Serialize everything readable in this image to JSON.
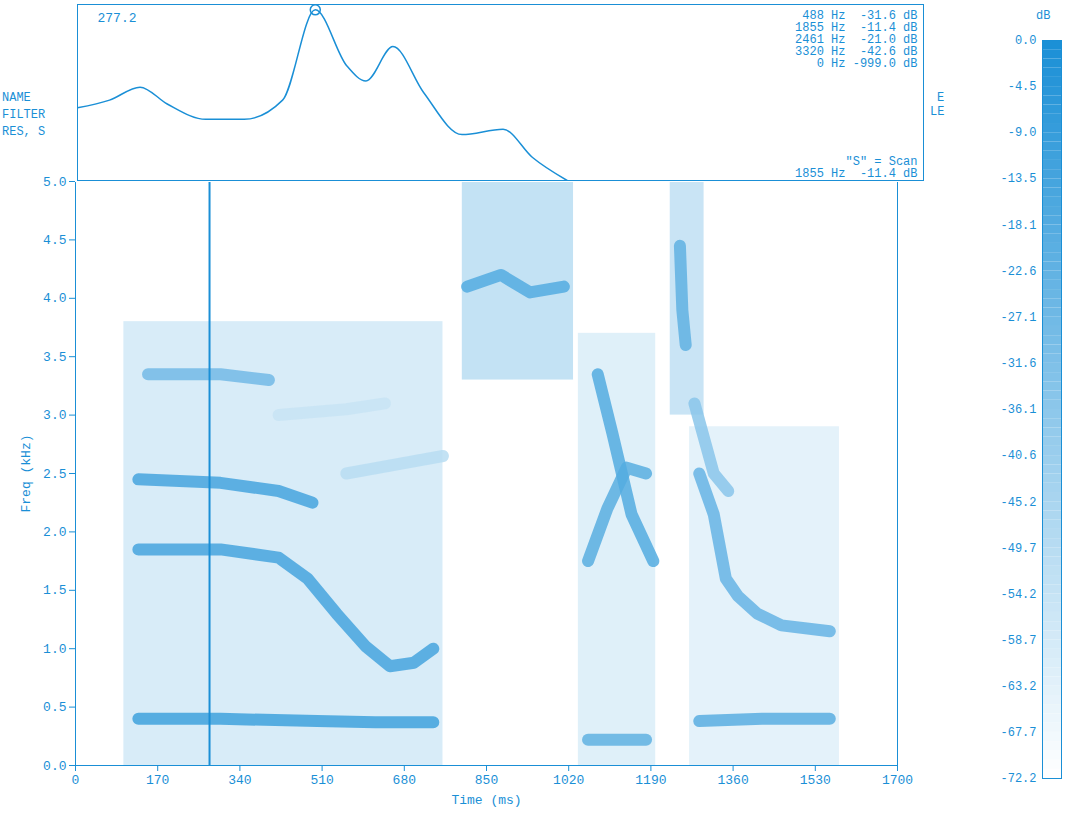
{
  "chart_data": [
    {
      "type": "line",
      "x": [
        0,
        250,
        488,
        700,
        1000,
        1300,
        1600,
        1855,
        2100,
        2250,
        2461,
        2700,
        3000,
        3320,
        3550,
        3820
      ],
      "values": [
        -37,
        -35,
        -31.6,
        -36,
        -40,
        -40,
        -35,
        -11.4,
        -26,
        -30,
        -21.0,
        -33,
        -44,
        -42.6,
        -50,
        -56
      ],
      "xlim": [
        0,
        6600
      ],
      "ylim": [
        -56,
        -10
      ],
      "tick_labels": false,
      "color": "#1a8fd6",
      "side_labels": [
        "NAME",
        "FILTER",
        "RES, S"
      ],
      "edge_labels": [
        "E",
        "LE"
      ],
      "readings": [
        "488 Hz  -31.6 dB",
        "1855 Hz  -11.4 dB",
        "2461 Hz  -21.0 dB",
        "3320 Hz  -42.6 dB",
        "0 Hz -999.0 dB"
      ],
      "scan_note": "\"S\" = Scan",
      "scan": {
        "hz": 1855,
        "db": -11.4,
        "label": "1855 Hz  -11.4 dB"
      },
      "marker": "circle"
    },
    {
      "type": "spectrogram",
      "xlabel": "Time (ms)",
      "ylabel": "Freq (kHz)",
      "xlim": [
        0,
        1700
      ],
      "ylim": [
        0,
        5
      ],
      "xticks": [
        0,
        170,
        340,
        510,
        680,
        850,
        1020,
        1190,
        1360,
        1530,
        1700
      ],
      "yticks": [
        {
          "value": 0,
          "label": "0.0"
        },
        0.5,
        {
          "value": 1,
          "label": "1.0"
        },
        1.5,
        {
          "value": 2,
          "label": "2.0"
        },
        2.5,
        {
          "value": 3,
          "label": "3.0"
        },
        3.5,
        {
          "value": 4,
          "label": "4.0"
        },
        4.5,
        {
          "value": 5,
          "label": "5.0"
        }
      ],
      "cursor": 277.2,
      "tracks": [
        {
          "db": -12,
          "points": [
            [
              130,
              0.4
            ],
            [
              300,
              0.4
            ],
            [
              500,
              0.38
            ],
            [
              620,
              0.37
            ],
            [
              740,
              0.37
            ]
          ]
        },
        {
          "db": -14,
          "points": [
            [
              130,
              1.85
            ],
            [
              300,
              1.85
            ],
            [
              420,
              1.78
            ],
            [
              480,
              1.6
            ],
            [
              540,
              1.3
            ],
            [
              600,
              1.02
            ],
            [
              650,
              0.85
            ],
            [
              700,
              0.88
            ],
            [
              740,
              1.0
            ]
          ]
        },
        {
          "db": -14,
          "points": [
            [
              130,
              2.45
            ],
            [
              300,
              2.42
            ],
            [
              420,
              2.35
            ],
            [
              490,
              2.25
            ]
          ]
        },
        {
          "db": -28,
          "points": [
            [
              150,
              3.35
            ],
            [
              300,
              3.35
            ],
            [
              400,
              3.3
            ]
          ]
        },
        {
          "db": -50,
          "points": [
            [
              560,
              2.5
            ],
            [
              760,
              2.65
            ]
          ]
        },
        {
          "db": -55,
          "points": [
            [
              420,
              3.0
            ],
            [
              560,
              3.05
            ],
            [
              640,
              3.1
            ]
          ]
        },
        {
          "db": -18,
          "points": [
            [
              810,
              4.1
            ],
            [
              880,
              4.2
            ],
            [
              940,
              4.05
            ],
            [
              1010,
              4.1
            ]
          ]
        },
        {
          "db": -22,
          "points": [
            [
              1060,
              0.22
            ],
            [
              1180,
              0.22
            ]
          ]
        },
        {
          "db": -20,
          "points": [
            [
              1060,
              1.75
            ],
            [
              1100,
              2.2
            ],
            [
              1140,
              2.55
            ],
            [
              1180,
              2.5
            ]
          ]
        },
        {
          "db": -18,
          "points": [
            [
              1080,
              3.35
            ],
            [
              1110,
              2.85
            ],
            [
              1150,
              2.15
            ],
            [
              1195,
              1.75
            ]
          ]
        },
        {
          "db": -22,
          "points": [
            [
              1250,
              4.45
            ],
            [
              1255,
              3.9
            ],
            [
              1262,
              3.6
            ]
          ]
        },
        {
          "db": -20,
          "points": [
            [
              1290,
              0.38
            ],
            [
              1420,
              0.4
            ],
            [
              1560,
              0.4
            ]
          ]
        },
        {
          "db": -24,
          "points": [
            [
              1290,
              2.5
            ],
            [
              1320,
              2.15
            ],
            [
              1345,
              1.6
            ],
            [
              1370,
              1.45
            ],
            [
              1410,
              1.3
            ],
            [
              1460,
              1.2
            ],
            [
              1560,
              1.15
            ]
          ]
        },
        {
          "db": -35,
          "points": [
            [
              1280,
              3.1
            ],
            [
              1320,
              2.5
            ],
            [
              1350,
              2.35
            ]
          ]
        }
      ],
      "regions": [
        {
          "db": -55,
          "x": [
            100,
            760
          ],
          "y": [
            0,
            3.8
          ]
        },
        {
          "db": -45,
          "x": [
            800,
            1030
          ],
          "y": [
            3.3,
            5.0
          ]
        },
        {
          "db": -58,
          "x": [
            1040,
            1200
          ],
          "y": [
            0,
            3.7
          ]
        },
        {
          "db": -48,
          "x": [
            1230,
            1300
          ],
          "y": [
            3.0,
            5.0
          ]
        },
        {
          "db": -60,
          "x": [
            1270,
            1580
          ],
          "y": [
            0,
            2.9
          ]
        }
      ]
    },
    {
      "type": "colorbar",
      "label": "dB",
      "lim": [
        -72.2,
        0
      ],
      "ticks": [
        {
          "value": 0,
          "label": "0.0"
        },
        -4.5,
        {
          "value": -9,
          "label": "-9.0"
        },
        -13.5,
        -18.1,
        -22.6,
        -27.1,
        -31.6,
        -36.1,
        -40.6,
        -45.2,
        -49.7,
        -54.2,
        -58.7,
        -63.2,
        -67.7,
        -72.2
      ],
      "colors": [
        "#ffffff",
        "#1a8fd6"
      ]
    }
  ]
}
